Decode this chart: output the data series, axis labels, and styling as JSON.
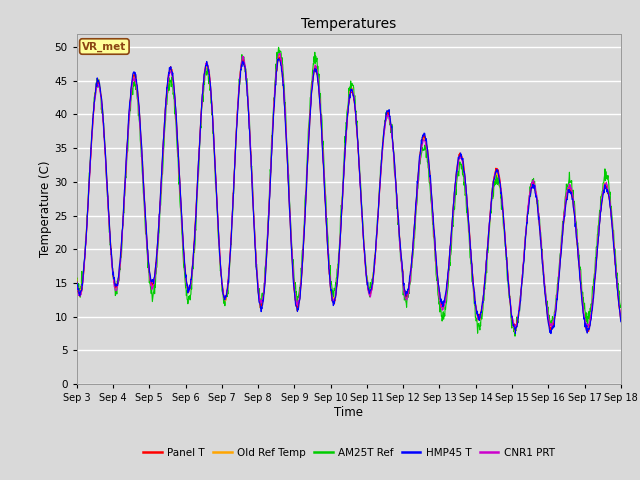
{
  "title": "Temperatures",
  "xlabel": "Time",
  "ylabel": "Temperature (C)",
  "ylim": [
    0,
    52
  ],
  "yticks": [
    0,
    5,
    10,
    15,
    20,
    25,
    30,
    35,
    40,
    45,
    50
  ],
  "bg_color": "#d9d9d9",
  "plot_bg_color": "#d9d9d9",
  "grid_color": "white",
  "annotation_text": "VR_met",
  "annotation_bg": "#ffff99",
  "annotation_border": "#8b4513",
  "series_colors": {
    "Panel T": "#ff0000",
    "Old Ref Temp": "#ffa500",
    "AM25T Ref": "#00cc00",
    "HMP45 T": "#0000ff",
    "CNR1 PRT": "#cc00cc"
  },
  "x_tick_labels": [
    "Sep 3",
    "Sep 4",
    "Sep 5",
    "Sep 6",
    "Sep 7",
    "Sep 8",
    "Sep 9",
    "Sep 10",
    "Sep 11",
    "Sep 12",
    "Sep 13",
    "Sep 14",
    "Sep 15",
    "Sep 16",
    "Sep 17",
    "Sep 18"
  ],
  "figsize": [
    6.4,
    4.8
  ],
  "dpi": 100
}
